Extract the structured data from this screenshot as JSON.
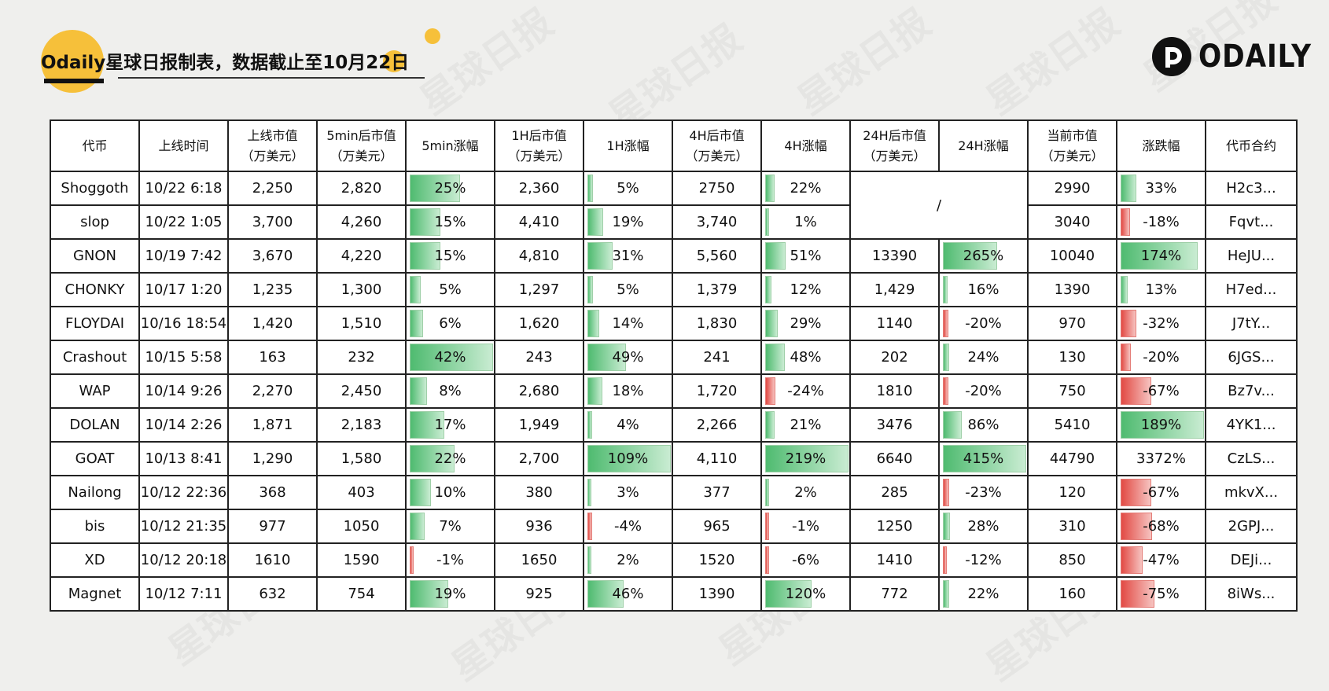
{
  "header": {
    "title": "Odaily星球日报制表，数据截止至10月22日",
    "brand": "ODAILY",
    "accent_color": "#f6c03a"
  },
  "watermark_text": "星球日报",
  "table": {
    "headers": [
      "代币",
      "上线时间",
      "上线市值\n（万美元）",
      "5min后市值\n（万美元）",
      "5min涨幅",
      "1H后市值\n（万美元）",
      "1H涨幅",
      "4H后市值\n（万美元）",
      "4H涨幅",
      "24H后市值\n（万美元）",
      "24H涨幅",
      "当前市值\n（万美元）",
      "涨跌幅",
      "代币合约"
    ],
    "na_text": "/",
    "rows": [
      [
        "Shoggoth",
        "10/22 6:18",
        "2,250",
        "2,820",
        "25%",
        "2,360",
        "5%",
        "2750",
        "22%",
        null,
        null,
        "2990",
        "33%",
        "H2c3..."
      ],
      [
        "slop",
        "10/22 1:05",
        "3,700",
        "4,260",
        "15%",
        "4,410",
        "19%",
        "3,740",
        "1%",
        null,
        null,
        "3040",
        "-18%",
        "Fqvt..."
      ],
      [
        "GNON",
        "10/19 7:42",
        "3,670",
        "4,220",
        "15%",
        "4,810",
        "31%",
        "5,560",
        "51%",
        "13390",
        "265%",
        "10040",
        "174%",
        "HeJU..."
      ],
      [
        "CHONKY",
        "10/17 1:20",
        "1,235",
        "1,300",
        "5%",
        "1,297",
        "5%",
        "1,379",
        "12%",
        "1,429",
        "16%",
        "1390",
        "13%",
        "H7ed..."
      ],
      [
        "FLOYDAI",
        "10/16 18:54",
        "1,420",
        "1,510",
        "6%",
        "1,620",
        "14%",
        "1,830",
        "29%",
        "1140",
        "-20%",
        "970",
        "-32%",
        "J7tY..."
      ],
      [
        "Crashout",
        "10/15 5:58",
        "163",
        "232",
        "42%",
        "243",
        "49%",
        "241",
        "48%",
        "202",
        "24%",
        "130",
        "-20%",
        "6JGS..."
      ],
      [
        "WAP",
        "10/14 9:26",
        "2,270",
        "2,450",
        "8%",
        "2,680",
        "18%",
        "1,720",
        "-24%",
        "1810",
        "-20%",
        "750",
        "-67%",
        "Bz7v..."
      ],
      [
        "DOLAN",
        "10/14 2:26",
        "1,871",
        "2,183",
        "17%",
        "1,949",
        "4%",
        "2,266",
        "21%",
        "3476",
        "86%",
        "5410",
        "189%",
        "4YK1..."
      ],
      [
        "GOAT",
        "10/13 8:41",
        "1,290",
        "1,580",
        "22%",
        "2,700",
        "109%",
        "4,110",
        "219%",
        "6640",
        "415%",
        "44790",
        "3372%",
        "CzLS..."
      ],
      [
        "Nailong",
        "10/12 22:36",
        "368",
        "403",
        "10%",
        "380",
        "3%",
        "377",
        "2%",
        "285",
        "-23%",
        "120",
        "-67%",
        "mkvX..."
      ],
      [
        "bis",
        "10/12 21:35",
        "977",
        "1050",
        "7%",
        "936",
        "-4%",
        "965",
        "-1%",
        "1250",
        "28%",
        "310",
        "-68%",
        "2GPJ..."
      ],
      [
        "XD",
        "10/12 20:18",
        "1610",
        "1590",
        "-1%",
        "1650",
        "2%",
        "1520",
        "-6%",
        "1410",
        "-12%",
        "850",
        "-47%",
        "DEJi..."
      ],
      [
        "Magnet",
        "10/12 7:11",
        "632",
        "754",
        "19%",
        "925",
        "46%",
        "1390",
        "120%",
        "772",
        "22%",
        "160",
        "-75%",
        "8iWs..."
      ]
    ],
    "bars": {
      "4": [
        25,
        15,
        15,
        5,
        6,
        42,
        8,
        17,
        22,
        10,
        7,
        -1,
        19
      ],
      "6": [
        5,
        19,
        31,
        5,
        14,
        49,
        18,
        4,
        109,
        3,
        -4,
        2,
        46
      ],
      "8": [
        22,
        1,
        51,
        12,
        29,
        48,
        -24,
        21,
        219,
        2,
        -1,
        -6,
        120
      ],
      "10": [
        null,
        null,
        265,
        16,
        -20,
        24,
        -20,
        86,
        415,
        -23,
        28,
        -12,
        22
      ],
      "12": [
        33,
        -18,
        174,
        13,
        -32,
        -20,
        -67,
        189,
        null,
        -67,
        -68,
        -47,
        -75
      ]
    },
    "bar_colors": {
      "positive": "#4fbb70",
      "negative": "#e24a44"
    }
  }
}
